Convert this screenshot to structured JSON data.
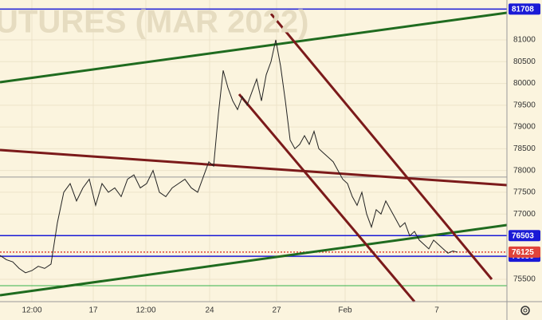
{
  "chart_data": {
    "type": "line",
    "watermark": "UTURES (MAR 2022)",
    "x": [
      0,
      8,
      16,
      24,
      32,
      40,
      48,
      56,
      64,
      72,
      80,
      88,
      96,
      104,
      112,
      120,
      128,
      136,
      144,
      152,
      160,
      168,
      176,
      184,
      192,
      200,
      208,
      216,
      224,
      232,
      240,
      248,
      256,
      262,
      268,
      274,
      280,
      286,
      292,
      298,
      304,
      310,
      316,
      322,
      328,
      334,
      340,
      346,
      352,
      358,
      364,
      370,
      376,
      382,
      388,
      394,
      400,
      406,
      412,
      418,
      424,
      430,
      436,
      442,
      448,
      454,
      460,
      466,
      472,
      478,
      484,
      490,
      496,
      502,
      508,
      514,
      520,
      526,
      532,
      538,
      544,
      550,
      556,
      562,
      568,
      574
    ],
    "series": [
      {
        "color": "#222222",
        "values": [
          76050,
          75950,
          75900,
          75750,
          75650,
          75700,
          75800,
          75750,
          75850,
          76800,
          77500,
          77700,
          77300,
          77600,
          77800,
          77200,
          77700,
          77500,
          77600,
          77400,
          77800,
          77900,
          77600,
          77700,
          78000,
          77500,
          77400,
          77600,
          77700,
          77800,
          77600,
          77500,
          77900,
          78200,
          78100,
          79300,
          80300,
          79900,
          79600,
          79400,
          79700,
          79500,
          79800,
          80100,
          79600,
          80200,
          80500,
          81000,
          80400,
          79600,
          78700,
          78500,
          78600,
          78800,
          78600,
          78900,
          78500,
          78400,
          78300,
          78200,
          78000,
          77800,
          77700,
          77400,
          77200,
          77500,
          77000,
          76700,
          77100,
          77000,
          77300,
          77100,
          76900,
          76700,
          76800,
          76500,
          76600,
          76400,
          76300,
          76200,
          76400,
          76300,
          76200,
          76100,
          76150,
          76125
        ]
      }
    ],
    "xlim": [
      0,
      636
    ],
    "xticks": [
      {
        "value": 40,
        "label": "12:00"
      },
      {
        "value": 117,
        "label": "17"
      },
      {
        "value": 183,
        "label": "12:00"
      },
      {
        "value": 263,
        "label": "24"
      },
      {
        "value": 347,
        "label": "27"
      },
      {
        "value": 433,
        "label": "Feb"
      },
      {
        "value": 548,
        "label": "7"
      }
    ],
    "ylim": [
      74987,
      81917
    ],
    "yticks": [
      75500,
      76000,
      76500,
      77000,
      77500,
      78000,
      78500,
      79000,
      79500,
      80000,
      80500,
      81000
    ],
    "grid": true,
    "levels": [
      {
        "value": 81708,
        "color": "#1a1ad6",
        "badge": true
      },
      {
        "value": 76503,
        "color": "#1a1ad6",
        "badge": true
      },
      {
        "value": 76030,
        "color": "#1a1ad6",
        "badge": true
      },
      {
        "value": 76125,
        "color": "#e0443a",
        "badge": true
      },
      {
        "value": 77850,
        "color": "#9a9a9a",
        "badge": false
      },
      {
        "value": 75353,
        "color": "#35b24a",
        "badge": false
      }
    ],
    "trendlines": [
      {
        "x": [
          0,
          636
        ],
        "y": [
          80028,
          81623
        ],
        "color": "#1f6b1f"
      },
      {
        "x": [
          0,
          636
        ],
        "y": [
          75133,
          76747
        ],
        "color": "#1f6b1f"
      },
      {
        "x": [
          0,
          636
        ],
        "y": [
          78470,
          77663
        ],
        "color": "#7b1a1a"
      },
      {
        "x": [
          340,
          617
        ],
        "y": [
          81601,
          75500
        ],
        "color": "#7b1a1a"
      },
      {
        "x": [
          300,
          520
        ],
        "y": [
          79753,
          74987
        ],
        "color": "#7b1a1a"
      }
    ]
  }
}
